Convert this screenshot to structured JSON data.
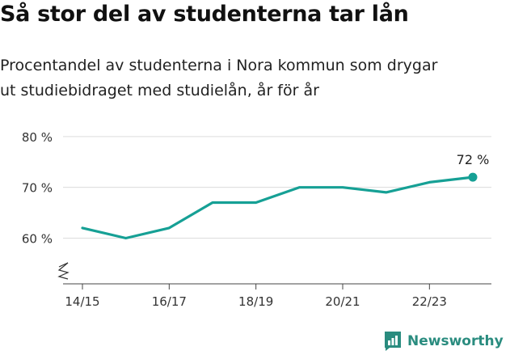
{
  "header": {
    "title": "Så stor del av studenterna tar lån",
    "subtitle_line1": "Procentandel av studenterna i Nora kommun som drygar",
    "subtitle_line2": "ut studiebidraget med studielån, år för år"
  },
  "brand": {
    "name": "Newsworthy",
    "icon": "newsworthy-logo-icon",
    "color": "#2a8c7f"
  },
  "chart_data": {
    "type": "line",
    "title": "Så stor del av studenterna tar lån",
    "x": [
      "14/15",
      "15/16",
      "16/17",
      "17/18",
      "18/19",
      "19/20",
      "20/21",
      "21/22",
      "22/23",
      "23/24"
    ],
    "series": [
      {
        "values": [
          62,
          60,
          62,
          67,
          67,
          70,
          70,
          69,
          71,
          72
        ],
        "color": "#16a095"
      }
    ],
    "ylim": [
      51,
      83
    ],
    "y_ticks": [
      60,
      70,
      80
    ],
    "y_tick_labels": [
      "60 %",
      "70 %",
      "80 %"
    ],
    "x_tick_labels": [
      "14/15",
      "16/17",
      "18/19",
      "20/21",
      "22/23"
    ],
    "x_tick_positions": [
      "14/15",
      "16/17",
      "18/19",
      "20/21",
      "22/23"
    ],
    "axis_break": true,
    "last_value_label": "72 %",
    "grid": "horizontal",
    "xlabel": "",
    "ylabel": ""
  }
}
